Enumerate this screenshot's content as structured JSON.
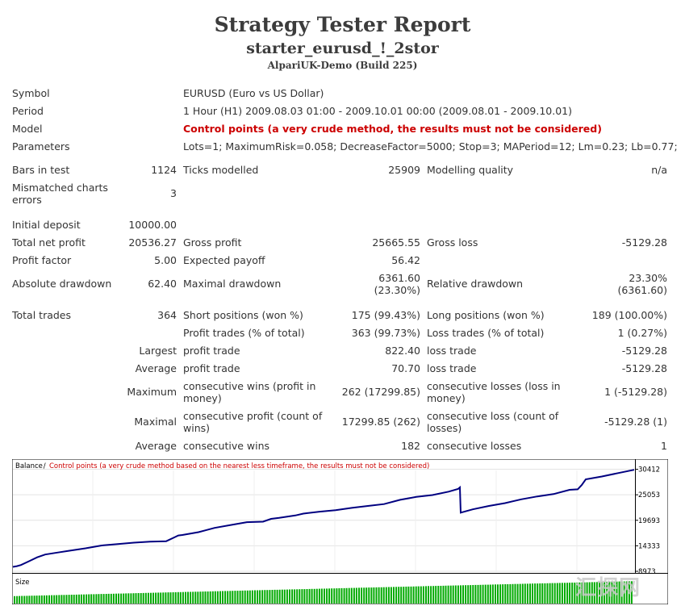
{
  "header": {
    "title": "Strategy Tester Report",
    "expert": "starter_eurusd_!_2stor",
    "server": "AlpariUK-Demo (Build 225)"
  },
  "info": {
    "symbol_label": "Symbol",
    "symbol_value": "EURUSD (Euro vs US Dollar)",
    "period_label": "Period",
    "period_value": "1 Hour (H1) 2009.08.03 01:00 - 2009.10.01 00:00 (2009.08.01 - 2009.10.01)",
    "model_label": "Model",
    "model_value": "Control points (a very crude method, the results must not be considered)",
    "params_label": "Parameters",
    "params_value": "Lots=1; MaximumRisk=0.058; DecreaseFactor=5000; Stop=3; MAPeriod=12; Lm=0.23; Lb=0.77;"
  },
  "bars": {
    "bars_label": "Bars in test",
    "bars_value": "1124",
    "ticks_label": "Ticks modelled",
    "ticks_value": "25909",
    "quality_label": "Modelling quality",
    "quality_value": "n/a",
    "mismatch_label_1": "Mismatched charts",
    "mismatch_label_2": "errors",
    "mismatch_value": "3"
  },
  "results": {
    "deposit_label": "Initial deposit",
    "deposit_value": "10000.00",
    "net_label": "Total net profit",
    "net_value": "20536.27",
    "gross_profit_label": "Gross profit",
    "gross_profit_value": "25665.55",
    "gross_loss_label": "Gross loss",
    "gross_loss_value": "-5129.28",
    "pf_label": "Profit factor",
    "pf_value": "5.00",
    "payoff_label": "Expected payoff",
    "payoff_value": "56.42",
    "abs_dd_label": "Absolute drawdown",
    "abs_dd_value": "62.40",
    "max_dd_label": "Maximal drawdown",
    "max_dd_value_1": "6361.60",
    "max_dd_value_2": "(23.30%)",
    "rel_dd_label": "Relative drawdown",
    "rel_dd_value_1": "23.30%",
    "rel_dd_value_2": "(6361.60)"
  },
  "trades": {
    "total_label": "Total trades",
    "total_value": "364",
    "short_label": "Short positions (won %)",
    "short_value": "175 (99.43%)",
    "long_label": "Long positions (won %)",
    "long_value": "189 (100.00%)",
    "profit_trades_label": "Profit trades (% of total)",
    "profit_trades_value": "363 (99.73%)",
    "loss_trades_label": "Loss trades (% of total)",
    "loss_trades_value": "1 (0.27%)",
    "largest_label": "Largest",
    "largest_profit_label": "profit trade",
    "largest_profit_value": "822.40",
    "largest_loss_label": "loss trade",
    "largest_loss_value": "-5129.28",
    "average_label": "Average",
    "average_profit_label": "profit trade",
    "average_profit_value": "70.70",
    "average_loss_label": "loss trade",
    "average_loss_value": "-5129.28",
    "maximum_label": "Maximum",
    "max_cons_wins_label_1": "consecutive wins (profit in",
    "max_cons_wins_label_2": "money)",
    "max_cons_wins_value": "262 (17299.85)",
    "max_cons_losses_label_1": "consecutive losses (loss in",
    "max_cons_losses_label_2": "money)",
    "max_cons_losses_value": "1 (-5129.28)",
    "maximal_label": "Maximal",
    "maximal_profit_label_1": "consecutive profit (count of",
    "maximal_profit_label_2": "wins)",
    "maximal_profit_value": "17299.85 (262)",
    "maximal_loss_label_1": "consecutive loss (count of",
    "maximal_loss_label_2": "losses)",
    "maximal_loss_value": "-5129.28 (1)",
    "avg_cons_label": "Average",
    "avg_cons_wins_label": "consecutive wins",
    "avg_cons_wins_value": "182",
    "avg_cons_losses_label": "consecutive losses",
    "avg_cons_losses_value": "1"
  },
  "chart_legend": {
    "balance": "Balance",
    "sep": " / ",
    "note": "Control points (a very crude method based on the nearest less timeframe, the results must not be considered)",
    "size_label": "Size"
  },
  "watermark": "汇探网",
  "chart_data": {
    "type": "line",
    "series": [
      {
        "name": "Balance",
        "color": "#000080",
        "x": [
          0,
          5,
          10,
          20,
          30,
          40,
          55,
          70,
          90,
          110,
          130,
          150,
          170,
          190,
          200,
          205,
          210,
          230,
          250,
          270,
          290,
          310,
          320,
          330,
          350,
          360,
          380,
          400,
          420,
          440,
          460,
          480,
          500,
          520,
          540,
          552,
          554,
          555,
          570,
          590,
          610,
          630,
          650,
          670,
          690,
          700,
          705,
          710,
          730,
          750,
          770
        ],
        "y": [
          9900,
          10050,
          10300,
          11100,
          11900,
          12500,
          12900,
          13300,
          13800,
          14400,
          14700,
          15000,
          15200,
          15300,
          16100,
          16500,
          16600,
          17200,
          18100,
          18700,
          19300,
          19400,
          20000,
          20200,
          20700,
          21100,
          21500,
          21800,
          22300,
          22700,
          23100,
          24000,
          24600,
          25000,
          25700,
          26300,
          26600,
          21300,
          22000,
          22700,
          23300,
          24100,
          24700,
          25200,
          26100,
          26200,
          27100,
          28300,
          28900,
          29600,
          30300
        ]
      }
    ],
    "ylabels": [
      "30412",
      "25053",
      "19693",
      "14333",
      "8973"
    ],
    "yticks": [
      30412,
      25053,
      19693,
      14333,
      8973
    ],
    "ylim": [
      8973,
      32200
    ],
    "size_panel": {
      "type": "bar",
      "color": "#00aa00",
      "start_level": 0.25,
      "end_level": 0.75
    }
  }
}
